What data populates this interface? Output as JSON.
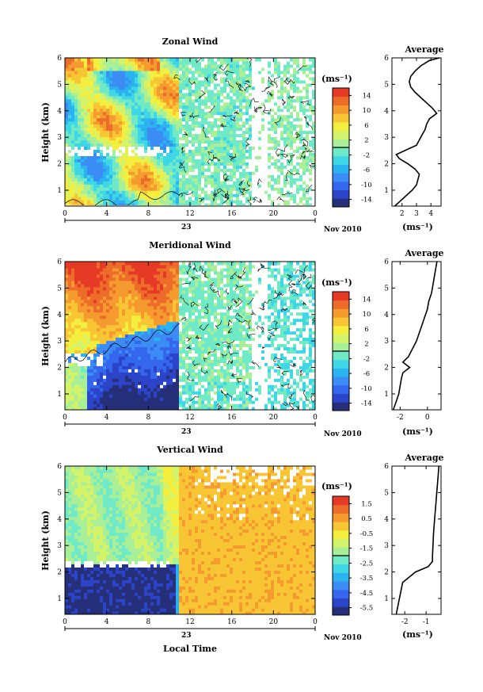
{
  "colors": {
    "scale": [
      "#262f7a",
      "#2b44c8",
      "#3566ee",
      "#3c8cf5",
      "#2bb3f0",
      "#3fd6e6",
      "#6fe9c6",
      "#a8ef98",
      "#d3f36a",
      "#f4ee3e",
      "#f8c535",
      "#f59a2f",
      "#ee6c2a",
      "#e63a26"
    ],
    "missing": "#ffffff"
  },
  "common": {
    "x_ticks": [
      "0",
      "4",
      "8",
      "12",
      "16",
      "20",
      "0"
    ],
    "date_day": "23",
    "date_month": "Nov 2010",
    "y_ticks": [
      "1",
      "2",
      "3",
      "4",
      "5",
      "6"
    ],
    "ylabel": "Height (km)",
    "unit_label": "(ms⁻¹)",
    "avg_title": "Average",
    "xlabel": "Local Time"
  },
  "chart_data": [
    {
      "type": "heatmap",
      "title": "Zonal Wind",
      "ylim": [
        0.4,
        6
      ],
      "xlim": [
        0,
        24
      ],
      "colorbar_ticks": [
        "14",
        "10",
        "6",
        "2",
        "-2",
        "-6",
        "-10",
        "-14"
      ],
      "profile": {
        "type": "line",
        "title": "Average",
        "xlim": [
          1.3,
          4.7
        ],
        "x_ticks": [
          "2",
          "3",
          "4"
        ],
        "height": [
          0.4,
          0.6,
          0.8,
          1.0,
          1.2,
          1.4,
          1.6,
          1.8,
          2.0,
          2.2,
          2.35,
          2.5,
          2.7,
          2.9,
          3.1,
          3.3,
          3.5,
          3.7,
          3.9,
          4.1,
          4.3,
          4.5,
          4.7,
          4.9,
          5.1,
          5.3,
          5.5,
          5.7,
          5.9,
          6.0
        ],
        "values": [
          1.5,
          1.9,
          2.3,
          2.7,
          3.0,
          3.1,
          3.2,
          2.9,
          2.4,
          1.8,
          1.6,
          2.2,
          3.0,
          3.2,
          3.4,
          3.6,
          3.7,
          3.9,
          4.4,
          4.1,
          3.7,
          3.3,
          2.9,
          2.6,
          2.5,
          2.6,
          2.9,
          3.3,
          3.9,
          4.6
        ]
      }
    },
    {
      "type": "heatmap",
      "title": "Meridional Wind",
      "ylim": [
        0.4,
        6
      ],
      "xlim": [
        0,
        24
      ],
      "colorbar_ticks": [
        "14",
        "10",
        "6",
        "2",
        "-2",
        "-6",
        "-10",
        "-14"
      ],
      "profile": {
        "type": "line",
        "title": "Average",
        "xlim": [
          -2.6,
          1.0
        ],
        "x_ticks": [
          "-2",
          "0"
        ],
        "height": [
          0.4,
          0.7,
          1.0,
          1.3,
          1.6,
          1.8,
          2.0,
          2.2,
          2.4,
          2.6,
          2.8,
          3.0,
          3.3,
          3.6,
          3.9,
          4.2,
          4.5,
          4.8,
          5.1,
          5.4,
          5.7,
          6.0
        ],
        "values": [
          -2.5,
          -2.3,
          -2.1,
          -2.0,
          -1.9,
          -1.8,
          -1.3,
          -1.8,
          -1.4,
          -1.2,
          -1.0,
          -0.8,
          -0.6,
          -0.4,
          -0.2,
          0.0,
          0.1,
          0.3,
          0.4,
          0.5,
          0.6,
          0.7
        ]
      }
    },
    {
      "type": "heatmap",
      "title": "Vertical Wind",
      "ylim": [
        0.4,
        6
      ],
      "xlim": [
        0,
        24
      ],
      "colorbar_ticks": [
        "1.5",
        "0.5",
        "-0.5",
        "-1.5",
        "-2.5",
        "-3.5",
        "-4.5",
        "-5.5"
      ],
      "profile": {
        "type": "line",
        "title": "Average",
        "xlim": [
          -2.6,
          -0.3
        ],
        "x_ticks": [
          "-2",
          "-1"
        ],
        "height": [
          0.4,
          0.8,
          1.2,
          1.6,
          1.8,
          2.0,
          2.2,
          2.4,
          2.6,
          3.0,
          3.5,
          4.0,
          4.5,
          5.0,
          5.5,
          6.0
        ],
        "values": [
          -2.4,
          -2.3,
          -2.2,
          -2.1,
          -1.8,
          -1.5,
          -0.9,
          -0.7,
          -0.7,
          -0.68,
          -0.65,
          -0.6,
          -0.55,
          -0.5,
          -0.45,
          -0.4
        ]
      }
    }
  ]
}
